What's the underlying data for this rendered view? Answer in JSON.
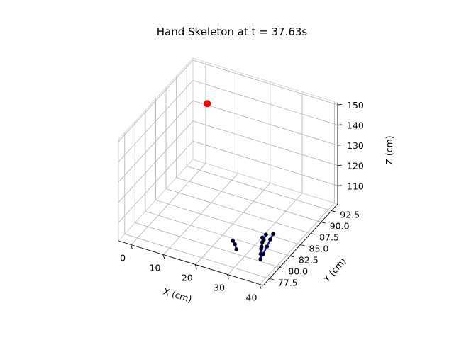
{
  "chart_data": {
    "type": "scatter3d",
    "title": "Hand Skeleton at t = 37.63s",
    "xlabel": "X (cm)",
    "ylabel": "Y (cm)",
    "zlabel": "Z (cm)",
    "xlim": [
      -4,
      41
    ],
    "ylim": [
      76,
      94
    ],
    "zlim": [
      101,
      151
    ],
    "x_ticks": [
      0,
      10,
      20,
      30,
      40
    ],
    "x_tick_labels": [
      "0",
      "10",
      "20",
      "30",
      "40"
    ],
    "y_ticks": [
      77.5,
      80.0,
      82.5,
      85.0,
      87.5,
      90.0,
      92.5
    ],
    "y_tick_labels": [
      "77.5",
      "80.0",
      "82.5",
      "85.0",
      "87.5",
      "90.0",
      "92.5"
    ],
    "z_ticks": [
      110,
      120,
      130,
      140,
      150
    ],
    "z_tick_labels": [
      "110",
      "120",
      "130",
      "140",
      "150"
    ],
    "grid": true,
    "colors": {
      "bone": "#0000dd",
      "joint": "#000000",
      "marker": "#ff0000"
    },
    "marker_point": {
      "x": 1.5,
      "y": 93.2,
      "z": 133
    },
    "joints": [
      {
        "x": 34.5,
        "y": 80.4,
        "z": 101
      },
      {
        "x": 32.4,
        "y": 82.2,
        "z": 101
      },
      {
        "x": 31.2,
        "y": 83.4,
        "z": 101
      },
      {
        "x": 30.2,
        "y": 84.2,
        "z": 101
      },
      {
        "x": 34.0,
        "y": 81.4,
        "z": 101
      },
      {
        "x": 33.3,
        "y": 82.9,
        "z": 101
      },
      {
        "x": 32.5,
        "y": 84.3,
        "z": 101
      },
      {
        "x": 32.0,
        "y": 85.4,
        "z": 101
      },
      {
        "x": 33.4,
        "y": 81.3,
        "z": 101
      },
      {
        "x": 32.0,
        "y": 82.6,
        "z": 101
      },
      {
        "x": 31.0,
        "y": 83.9,
        "z": 101
      },
      {
        "x": 30.4,
        "y": 84.9,
        "z": 101
      },
      {
        "x": 26.5,
        "y": 80.8,
        "z": 101
      },
      {
        "x": 25.0,
        "y": 81.6,
        "z": 101
      },
      {
        "x": 23.7,
        "y": 82.1,
        "z": 101
      }
    ],
    "bones": [
      [
        0,
        1
      ],
      [
        1,
        2
      ],
      [
        2,
        3
      ],
      [
        0,
        4
      ],
      [
        4,
        5
      ],
      [
        5,
        6
      ],
      [
        6,
        7
      ],
      [
        0,
        8
      ],
      [
        8,
        9
      ],
      [
        9,
        10
      ],
      [
        10,
        11
      ],
      [
        12,
        13
      ],
      [
        13,
        14
      ]
    ]
  }
}
